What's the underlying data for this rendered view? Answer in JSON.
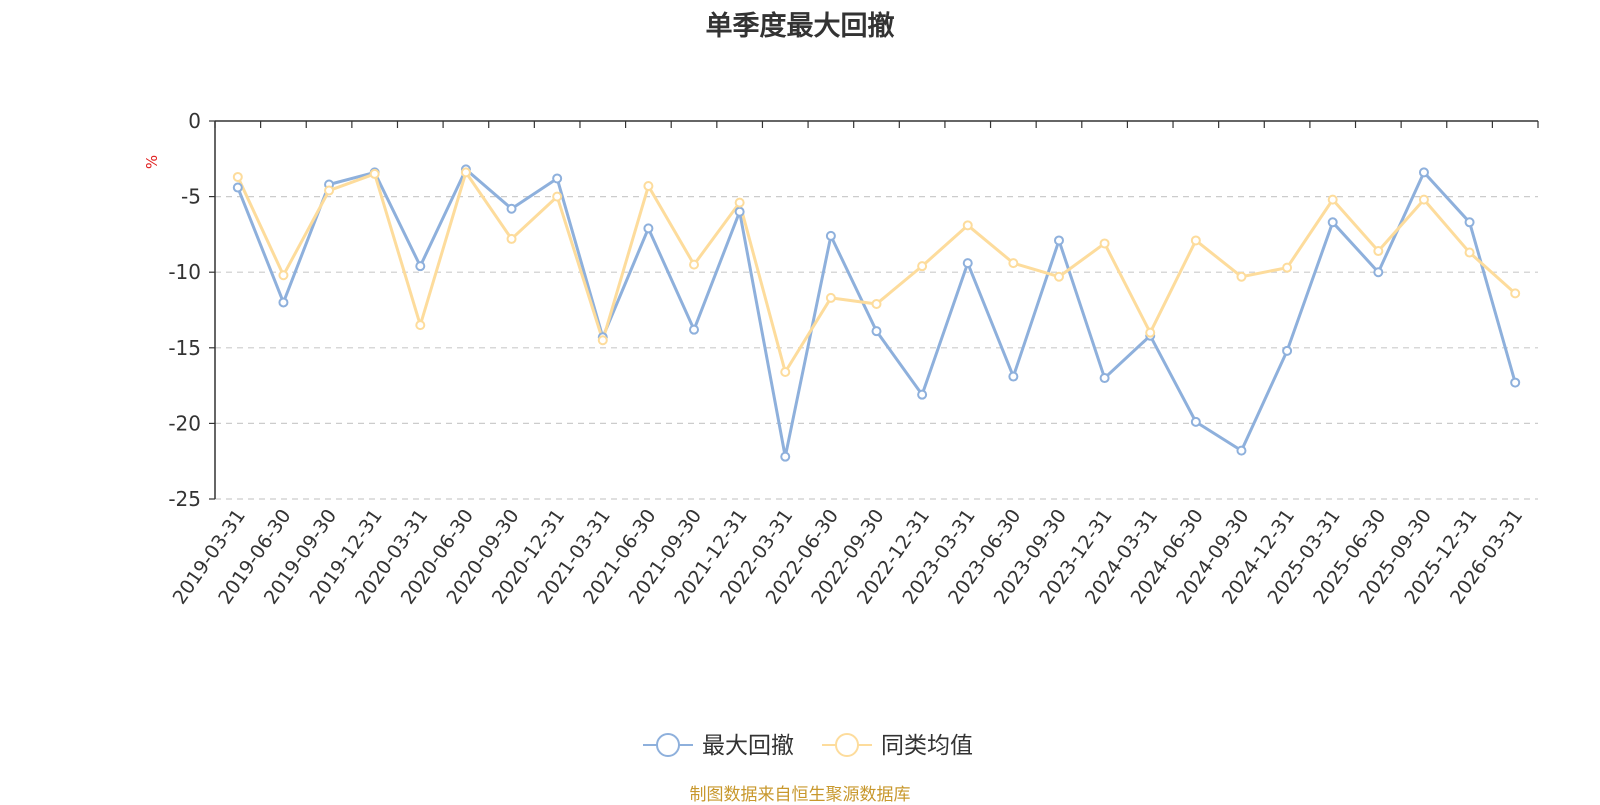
{
  "chart_data": {
    "type": "line",
    "title": "单季度最大回撤",
    "ylabel": "%",
    "ylim": [
      -25,
      0
    ],
    "yticks": [
      0,
      -5,
      -10,
      -15,
      -20,
      -25
    ],
    "grid": true,
    "legend_position": "bottom-center",
    "categories": [
      "2019-03-31",
      "2019-06-30",
      "2019-09-30",
      "2019-12-31",
      "2020-03-31",
      "2020-06-30",
      "2020-09-30",
      "2020-12-31",
      "2021-03-31",
      "2021-06-30",
      "2021-09-30",
      "2021-12-31",
      "2022-03-31",
      "2022-06-30",
      "2022-09-30",
      "2022-12-31",
      "2023-03-31",
      "2023-06-30",
      "2023-09-30",
      "2023-12-31",
      "2024-03-31",
      "2024-06-30",
      "2024-09-30",
      "2024-12-31",
      "2025-03-31",
      "2025-06-30",
      "2025-09-30",
      "2025-12-31",
      "2026-03-31"
    ],
    "series": [
      {
        "name": "最大回撤",
        "color": "#8eb0dc",
        "values": [
          -4.4,
          -12.0,
          -4.2,
          -3.4,
          -9.6,
          -3.2,
          -5.8,
          -3.8,
          -14.3,
          -7.1,
          -13.8,
          -6.0,
          -22.2,
          -7.6,
          -13.9,
          -18.1,
          -9.4,
          -16.9,
          -7.9,
          -17.0,
          -14.2,
          -19.9,
          -21.8,
          -15.2,
          -6.7,
          -10.0,
          -3.4,
          -6.7,
          -17.3
        ]
      },
      {
        "name": "同类均值",
        "color": "#fddc9c",
        "values": [
          -3.7,
          -10.2,
          -4.6,
          -3.5,
          -13.5,
          -3.4,
          -7.8,
          -5.0,
          -14.5,
          -4.3,
          -9.5,
          -5.4,
          -16.6,
          -11.7,
          -12.1,
          -9.6,
          -6.9,
          -9.4,
          -10.3,
          -8.1,
          -14.0,
          -7.9,
          -10.3,
          -9.7,
          -5.2,
          -8.6,
          -5.2,
          -8.7,
          -11.4
        ]
      }
    ]
  },
  "source": {
    "text": "制图数据来自恒生聚源数据库",
    "color": "#c8982d"
  },
  "colors": {
    "axis": "#333333",
    "grid": "#cccccc",
    "ylabel": "#e02020"
  }
}
